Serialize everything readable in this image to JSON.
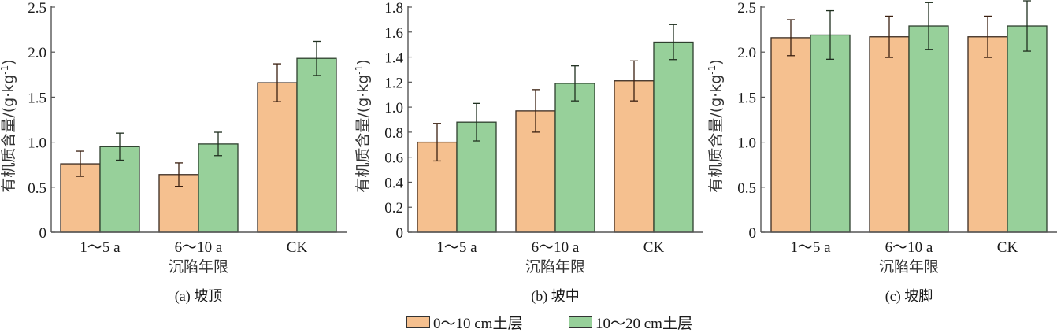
{
  "legend": [
    {
      "label": "0～10 cm土层",
      "color": "#f5c08f"
    },
    {
      "label": "10～20 cm土层",
      "color": "#97d09a"
    }
  ],
  "chart_data": [
    {
      "type": "bar",
      "caption": "(a)  坡顶",
      "xlabel": "沉陷年限",
      "ylabel": "有机质含量/(g·kg",
      "ylabel_sup": "-1",
      "ylabel_close": ")",
      "categories": [
        "1～5 a",
        "6～10 a",
        "CK"
      ],
      "ylim": [
        0,
        2.5
      ],
      "yticks": [
        0,
        0.5,
        1.0,
        1.5,
        2.0,
        2.5
      ],
      "ytick_labels": [
        "0",
        "0.5",
        "1.0",
        "1.5",
        "2.0",
        "2.5"
      ],
      "series": [
        {
          "name": "0～10 cm土层",
          "values": [
            0.76,
            0.64,
            1.66
          ],
          "err_low": [
            0.62,
            0.51,
            1.45
          ],
          "err_high": [
            0.9,
            0.77,
            1.87
          ]
        },
        {
          "name": "10～20 cm土层",
          "values": [
            0.95,
            0.98,
            1.93
          ],
          "err_low": [
            0.8,
            0.85,
            1.74
          ],
          "err_high": [
            1.1,
            1.11,
            2.12
          ]
        }
      ]
    },
    {
      "type": "bar",
      "caption": "(b)  坡中",
      "xlabel": "沉陷年限",
      "ylabel": "有机质含量/(g·kg",
      "ylabel_sup": "-1",
      "ylabel_close": ")",
      "categories": [
        "1～5 a",
        "6～10 a",
        "CK"
      ],
      "ylim": [
        0,
        1.8
      ],
      "yticks": [
        0,
        0.2,
        0.4,
        0.6,
        0.8,
        1.0,
        1.2,
        1.4,
        1.6,
        1.8
      ],
      "ytick_labels": [
        "0",
        "0.2",
        "0.4",
        "0.6",
        "0.8",
        "1.0",
        "1.2",
        "1.4",
        "1.6",
        "1.8"
      ],
      "series": [
        {
          "name": "0～10 cm土层",
          "values": [
            0.72,
            0.97,
            1.21
          ],
          "err_low": [
            0.57,
            0.8,
            1.05
          ],
          "err_high": [
            0.87,
            1.14,
            1.37
          ]
        },
        {
          "name": "10～20 cm土层",
          "values": [
            0.88,
            1.19,
            1.52
          ],
          "err_low": [
            0.73,
            1.05,
            1.38
          ],
          "err_high": [
            1.03,
            1.33,
            1.66
          ]
        }
      ]
    },
    {
      "type": "bar",
      "caption": "(c)  坡脚",
      "xlabel": "沉陷年限",
      "ylabel": "有机质含量/(g·kg",
      "ylabel_sup": "-1",
      "ylabel_close": ")",
      "categories": [
        "1～5 a",
        "6～10 a",
        "CK"
      ],
      "ylim": [
        0,
        2.5
      ],
      "yticks": [
        0,
        0.5,
        1.0,
        1.5,
        2.0,
        2.5
      ],
      "ytick_labels": [
        "0",
        "0.5",
        "1.0",
        "1.5",
        "2.0",
        "2.5"
      ],
      "series": [
        {
          "name": "0～10 cm土层",
          "values": [
            2.16,
            2.17,
            2.17
          ],
          "err_low": [
            1.96,
            1.94,
            1.94
          ],
          "err_high": [
            2.36,
            2.4,
            2.4
          ]
        },
        {
          "name": "10～20 cm土层",
          "values": [
            2.19,
            2.29,
            2.29
          ],
          "err_low": [
            1.92,
            2.03,
            2.01
          ],
          "err_high": [
            2.46,
            2.55,
            2.58
          ]
        }
      ]
    }
  ]
}
